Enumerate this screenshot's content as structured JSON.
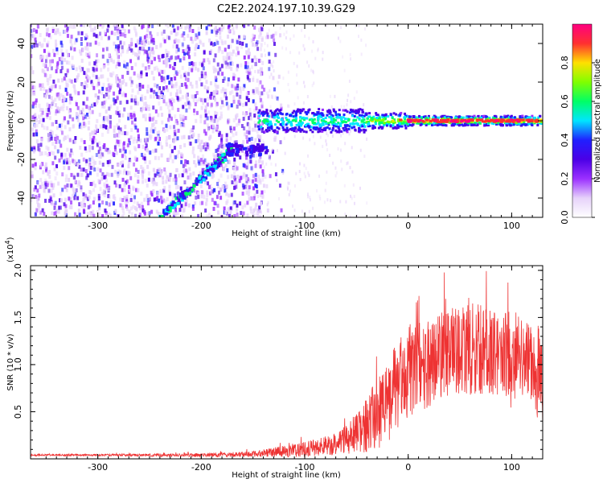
{
  "title": "C2E2.2024.197.10.39.G29",
  "chart_data": [
    {
      "type": "heatmap",
      "xlabel": "Height of straight line (km)",
      "ylabel": "Frequency (Hz)",
      "xlim": [
        -365,
        130
      ],
      "ylim": [
        -50,
        50
      ],
      "x_ticks": [
        -300,
        -200,
        -100,
        0,
        100
      ],
      "y_ticks": [
        -40,
        -20,
        0,
        20,
        40
      ],
      "colorbar": {
        "label": "Normalized spectral amplitude",
        "range": [
          0.0,
          1.0
        ],
        "ticks": [
          "0.0",
          "0.2",
          "0.4",
          "0.6",
          "0.8"
        ],
        "colors": [
          "#ffffff",
          "#e6d2fa",
          "#9b30ff",
          "#4b00e6",
          "#2020ff",
          "#00e5ff",
          "#00ff66",
          "#80ff00",
          "#ffe000",
          "#ff3030",
          "#ff0080"
        ]
      },
      "features": [
        {
          "name": "noise",
          "x_range": [
            -365,
            -140
          ],
          "y_range": [
            -50,
            50
          ]
        },
        {
          "name": "diagonal_streak",
          "x_start": -240,
          "y_start": -50,
          "x_end": -170,
          "y_end": -15
        },
        {
          "name": "carrier_line",
          "x_range": [
            -145,
            130
          ],
          "y_center": 0
        }
      ]
    },
    {
      "type": "line",
      "xlabel": "Height of straight line (km)",
      "ylabel": "SNR (10 * v/v)",
      "y_multiplier": "(x10",
      "y_multiplier_exp": "4",
      "y_multiplier_close": ")",
      "xlim": [
        -365,
        130
      ],
      "ylim": [
        0,
        2.05
      ],
      "x_ticks": [
        -300,
        -200,
        -100,
        0,
        100
      ],
      "y_ticks": [
        0.5,
        1.0,
        1.5,
        2.0
      ],
      "y_tick_labels": [
        "0.5",
        "1.0",
        "1.5",
        "2.0"
      ],
      "color": "#ee3333",
      "envelope": {
        "x": [
          -365,
          -300,
          -200,
          -150,
          -120,
          -100,
          -80,
          -60,
          -50,
          -40,
          -30,
          -20,
          -10,
          0,
          10,
          20,
          30,
          40,
          50,
          60,
          70,
          80,
          90,
          100,
          110,
          120,
          130
        ],
        "mean": [
          0.04,
          0.04,
          0.04,
          0.05,
          0.08,
          0.1,
          0.14,
          0.2,
          0.28,
          0.36,
          0.48,
          0.62,
          0.78,
          0.92,
          1.0,
          1.05,
          1.1,
          1.12,
          1.15,
          1.16,
          1.16,
          1.14,
          1.1,
          1.08,
          1.06,
          1.02,
          0.85
        ],
        "amp": [
          0.01,
          0.01,
          0.02,
          0.03,
          0.06,
          0.08,
          0.1,
          0.15,
          0.22,
          0.3,
          0.38,
          0.45,
          0.48,
          0.5,
          0.5,
          0.5,
          0.45,
          0.48,
          0.45,
          0.5,
          0.48,
          0.45,
          0.45,
          0.55,
          0.4,
          0.4,
          0.8
        ]
      }
    }
  ]
}
